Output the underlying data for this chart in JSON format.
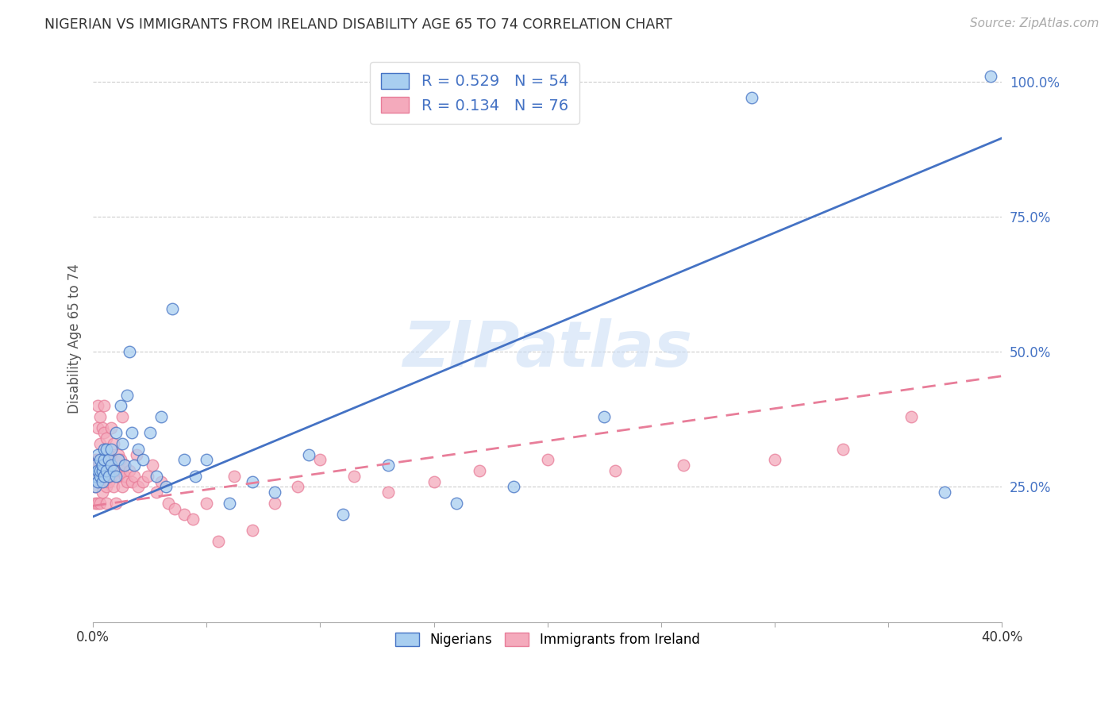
{
  "title": "NIGERIAN VS IMMIGRANTS FROM IRELAND DISABILITY AGE 65 TO 74 CORRELATION CHART",
  "source": "Source: ZipAtlas.com",
  "ylabel": "Disability Age 65 to 74",
  "x_min": 0.0,
  "x_max": 0.4,
  "y_min": 0.0,
  "y_max": 1.05,
  "y_ticks_right": [
    0.25,
    0.5,
    0.75,
    1.0
  ],
  "y_tick_labels_right": [
    "25.0%",
    "50.0%",
    "75.0%",
    "100.0%"
  ],
  "grid_color": "#cccccc",
  "background_color": "#ffffff",
  "legend_R1": "0.529",
  "legend_N1": "54",
  "legend_R2": "0.134",
  "legend_N2": "76",
  "color_nigerian": "#A8CEF0",
  "color_ireland": "#F4AABC",
  "color_line_nigerian": "#4472C4",
  "color_line_ireland": "#E87D99",
  "watermark": "ZIPatlas",
  "nigerian_line_x": [
    0.0,
    0.4
  ],
  "nigerian_line_y": [
    0.195,
    0.895
  ],
  "ireland_line_x": [
    0.0,
    0.4
  ],
  "ireland_line_y": [
    0.215,
    0.455
  ],
  "nigerian_x": [
    0.001,
    0.001,
    0.001,
    0.002,
    0.002,
    0.002,
    0.003,
    0.003,
    0.003,
    0.004,
    0.004,
    0.004,
    0.005,
    0.005,
    0.005,
    0.006,
    0.006,
    0.007,
    0.007,
    0.008,
    0.008,
    0.009,
    0.01,
    0.01,
    0.011,
    0.012,
    0.013,
    0.014,
    0.015,
    0.016,
    0.017,
    0.018,
    0.02,
    0.022,
    0.025,
    0.028,
    0.03,
    0.032,
    0.035,
    0.04,
    0.045,
    0.05,
    0.06,
    0.07,
    0.08,
    0.095,
    0.11,
    0.13,
    0.16,
    0.185,
    0.225,
    0.29,
    0.375,
    0.395
  ],
  "nigerian_y": [
    0.25,
    0.27,
    0.29,
    0.26,
    0.28,
    0.31,
    0.27,
    0.3,
    0.28,
    0.26,
    0.28,
    0.29,
    0.27,
    0.3,
    0.32,
    0.28,
    0.32,
    0.27,
    0.3,
    0.29,
    0.32,
    0.28,
    0.27,
    0.35,
    0.3,
    0.4,
    0.33,
    0.29,
    0.42,
    0.5,
    0.35,
    0.29,
    0.32,
    0.3,
    0.35,
    0.27,
    0.38,
    0.25,
    0.58,
    0.3,
    0.27,
    0.3,
    0.22,
    0.26,
    0.24,
    0.31,
    0.2,
    0.29,
    0.22,
    0.25,
    0.38,
    0.97,
    0.24,
    1.01
  ],
  "ireland_x": [
    0.001,
    0.001,
    0.001,
    0.001,
    0.002,
    0.002,
    0.002,
    0.002,
    0.002,
    0.002,
    0.003,
    0.003,
    0.003,
    0.003,
    0.004,
    0.004,
    0.004,
    0.004,
    0.005,
    0.005,
    0.005,
    0.005,
    0.006,
    0.006,
    0.006,
    0.006,
    0.007,
    0.007,
    0.007,
    0.008,
    0.008,
    0.008,
    0.009,
    0.009,
    0.01,
    0.01,
    0.011,
    0.011,
    0.012,
    0.012,
    0.013,
    0.013,
    0.014,
    0.014,
    0.015,
    0.016,
    0.017,
    0.018,
    0.019,
    0.02,
    0.022,
    0.024,
    0.026,
    0.028,
    0.03,
    0.033,
    0.036,
    0.04,
    0.044,
    0.05,
    0.055,
    0.062,
    0.07,
    0.08,
    0.09,
    0.1,
    0.115,
    0.13,
    0.15,
    0.17,
    0.2,
    0.23,
    0.26,
    0.3,
    0.33,
    0.36
  ],
  "ireland_y": [
    0.22,
    0.25,
    0.28,
    0.3,
    0.36,
    0.4,
    0.26,
    0.28,
    0.3,
    0.22,
    0.38,
    0.33,
    0.22,
    0.28,
    0.36,
    0.27,
    0.29,
    0.24,
    0.35,
    0.4,
    0.26,
    0.28,
    0.29,
    0.34,
    0.25,
    0.22,
    0.27,
    0.31,
    0.26,
    0.3,
    0.36,
    0.27,
    0.25,
    0.33,
    0.28,
    0.22,
    0.31,
    0.27,
    0.28,
    0.3,
    0.38,
    0.25,
    0.27,
    0.29,
    0.26,
    0.28,
    0.26,
    0.27,
    0.31,
    0.25,
    0.26,
    0.27,
    0.29,
    0.24,
    0.26,
    0.22,
    0.21,
    0.2,
    0.19,
    0.22,
    0.15,
    0.27,
    0.17,
    0.22,
    0.25,
    0.3,
    0.27,
    0.24,
    0.26,
    0.28,
    0.3,
    0.28,
    0.29,
    0.3,
    0.32,
    0.38
  ]
}
